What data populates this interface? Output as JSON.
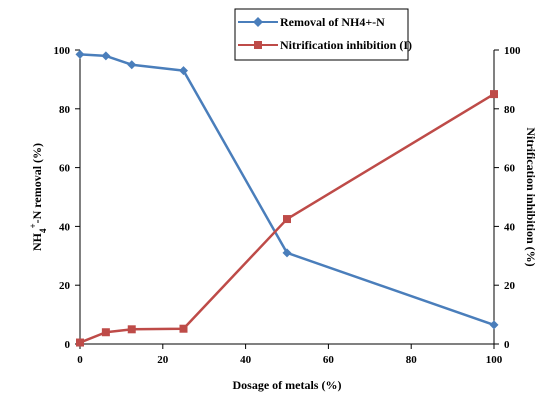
{
  "chart_data": {
    "type": "line",
    "title": "",
    "xlabel": "Dosage of metals (%)",
    "ylabel_left": "NH4+-N removal (%)",
    "ylabel_right": "Nitrification inhibition (%)",
    "xlim": [
      0,
      100
    ],
    "ylim_left": [
      0,
      100
    ],
    "ylim_right": [
      0,
      100
    ],
    "x_ticks": [
      "0",
      "20",
      "40",
      "60",
      "80",
      "100"
    ],
    "y_left_ticks": [
      "0",
      "20",
      "40",
      "60",
      "80",
      "100"
    ],
    "y_right_ticks": [
      "0",
      "20",
      "40",
      "60",
      "80",
      "100"
    ],
    "grid": false,
    "legend_position": "top-center",
    "series": [
      {
        "name": "Removal of NH4+-N",
        "axis": "left",
        "color": "#4a7ebb",
        "marker": "diamond",
        "x": [
          0,
          6.25,
          12.5,
          25,
          50,
          100
        ],
        "y": [
          98.5,
          98,
          95,
          93,
          31,
          6.5
        ]
      },
      {
        "name": "Nitrification inhibition (I)",
        "axis": "right",
        "color": "#be4b48",
        "marker": "square",
        "x": [
          0,
          6.25,
          12.5,
          25,
          50,
          100
        ],
        "y": [
          0.5,
          4,
          5,
          5.2,
          42.5,
          85
        ]
      }
    ]
  }
}
